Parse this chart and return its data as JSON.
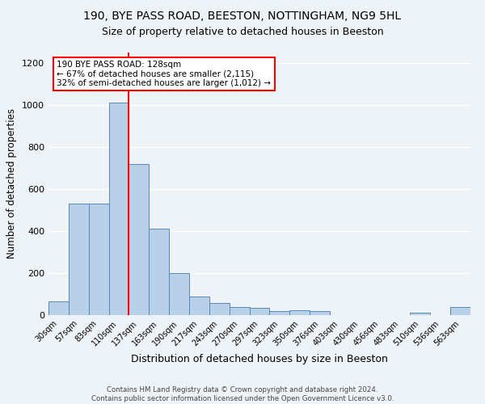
{
  "title1": "190, BYE PASS ROAD, BEESTON, NOTTINGHAM, NG9 5HL",
  "title2": "Size of property relative to detached houses in Beeston",
  "xlabel": "Distribution of detached houses by size in Beeston",
  "ylabel": "Number of detached properties",
  "categories": [
    "30sqm",
    "57sqm",
    "83sqm",
    "110sqm",
    "137sqm",
    "163sqm",
    "190sqm",
    "217sqm",
    "243sqm",
    "270sqm",
    "297sqm",
    "323sqm",
    "350sqm",
    "376sqm",
    "403sqm",
    "430sqm",
    "456sqm",
    "483sqm",
    "510sqm",
    "536sqm",
    "563sqm"
  ],
  "values": [
    65,
    530,
    530,
    1010,
    720,
    410,
    200,
    90,
    58,
    40,
    35,
    18,
    25,
    18,
    0,
    0,
    0,
    0,
    10,
    0,
    40
  ],
  "bar_color": "#b8d0e8",
  "bar_edge_color": "#5588bb",
  "vline_x": 3.5,
  "vline_color": "red",
  "annotation_text": "190 BYE PASS ROAD: 128sqm\n← 67% of detached houses are smaller (2,115)\n32% of semi-detached houses are larger (1,012) →",
  "annotation_box_color": "white",
  "annotation_box_edge_color": "red",
  "footnote": "Contains HM Land Registry data © Crown copyright and database right 2024.\nContains public sector information licensed under the Open Government Licence v3.0.",
  "ylim": [
    0,
    1250
  ],
  "yticks": [
    0,
    200,
    400,
    600,
    800,
    1000,
    1200
  ],
  "bg_color": "#eef3f8",
  "grid_color": "white",
  "title1_fontsize": 10,
  "title2_fontsize": 9,
  "xlabel_fontsize": 9,
  "ylabel_fontsize": 8.5
}
